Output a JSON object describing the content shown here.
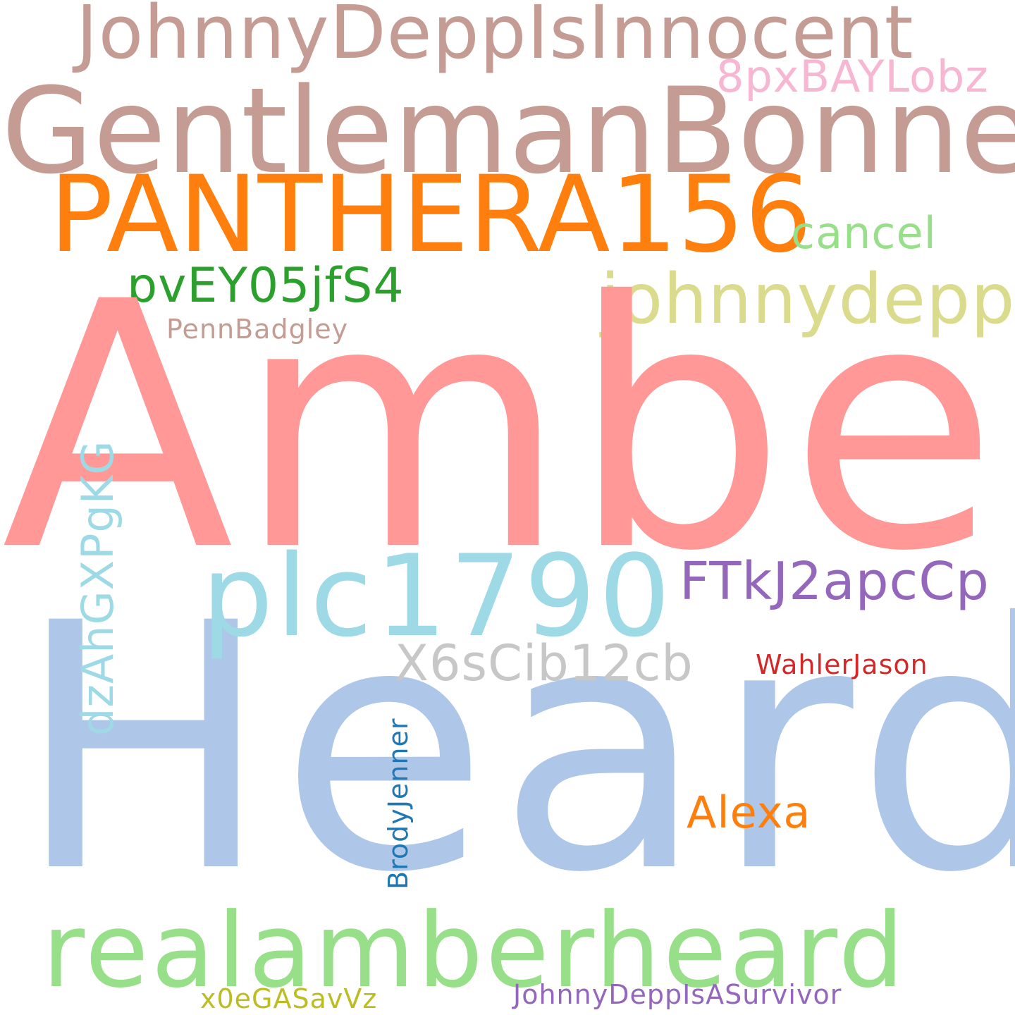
{
  "words": {
    "amber": {
      "text": "Amber",
      "color": "#ff9896"
    },
    "heard": {
      "text": "Heard",
      "color": "#aec7e8"
    },
    "gentleman": {
      "text": "GentlemanBonner",
      "color": "#c49c94"
    },
    "panthera": {
      "text": "PANTHERA156",
      "color": "#ff7f0e"
    },
    "jdinnocent": {
      "text": "JohnnyDeppIsInnocent",
      "color": "#c49c94"
    },
    "eightpx": {
      "text": "8pxBAYLobz",
      "color": "#f7b6d2"
    },
    "cancel": {
      "text": "cancel",
      "color": "#98df8a"
    },
    "johnnydepp": {
      "text": "johnnydepp",
      "color": "#dbdb8d"
    },
    "pvey": {
      "text": "pvEY05jfS4",
      "color": "#2ca02c"
    },
    "penn": {
      "text": "PennBadgley",
      "color": "#c49c94"
    },
    "plc": {
      "text": "plc1790",
      "color": "#9edae5"
    },
    "ftk": {
      "text": "FTkJ2apcCp",
      "color": "#9467bd"
    },
    "x6s": {
      "text": "X6sCib12cb",
      "color": "#c7c7c7"
    },
    "wahler": {
      "text": "WahlerJason",
      "color": "#d62728"
    },
    "alexa": {
      "text": "Alexa",
      "color": "#ff7f0e"
    },
    "real": {
      "text": "realamberheard",
      "color": "#98df8a"
    },
    "x0e": {
      "text": "x0eGASavVz",
      "color": "#bcbd22"
    },
    "jdsurvivor": {
      "text": "JohnnyDeppIsASurvivor",
      "color": "#9467bd"
    },
    "dzah": {
      "text": "dzAhGXPgKG",
      "color": "#9edae5"
    },
    "brody": {
      "text": "BrodyJenner",
      "color": "#1f77b4"
    }
  }
}
